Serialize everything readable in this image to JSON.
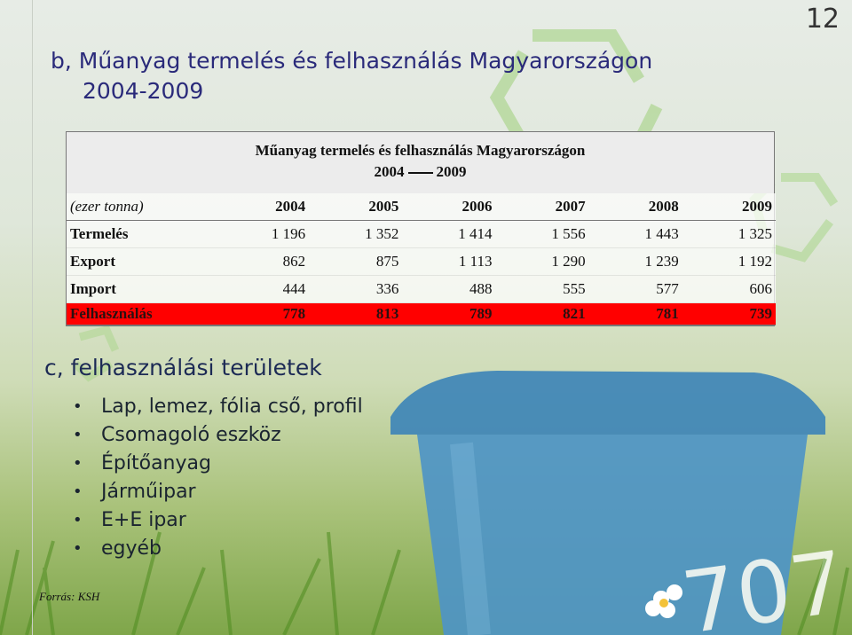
{
  "slide_number": "12",
  "section_title": {
    "line1": "b, Műanyag termelés és felhasználás Magyarországon",
    "line2": "2004-2009"
  },
  "table": {
    "caption_line1": "Műanyag termelés és felhasználás Magyarországon",
    "caption_year_from": "2004",
    "caption_year_to": "2009",
    "unit_label": "(ezer tonna)",
    "years": [
      "2004",
      "2005",
      "2006",
      "2007",
      "2008",
      "2009"
    ],
    "rows": [
      {
        "label": "Termelés",
        "values": [
          "1 196",
          "1 352",
          "1 414",
          "1 556",
          "1 443",
          "1 325"
        ]
      },
      {
        "label": "Export",
        "values": [
          "862",
          "875",
          "1 113",
          "1 290",
          "1 239",
          "1 192"
        ]
      },
      {
        "label": "Import",
        "values": [
          "444",
          "336",
          "488",
          "555",
          "577",
          "606"
        ]
      },
      {
        "label": "Felhasználás",
        "values": [
          "778",
          "813",
          "789",
          "821",
          "781",
          "739"
        ]
      }
    ],
    "highlight_color": "#ff0000"
  },
  "subtitle": "c, felhasználási területek",
  "uses": [
    "Lap, lemez, fólia cső, profil",
    "Csomagoló eszköz",
    "Építőanyag",
    "Járműipar",
    "E+E ipar",
    "egyéb"
  ],
  "source": "Forrás: KSH",
  "bin_number": "707",
  "icons": [
    "recycle-icon",
    "bin-icon",
    "flower-icon",
    "bullet-icon"
  ]
}
